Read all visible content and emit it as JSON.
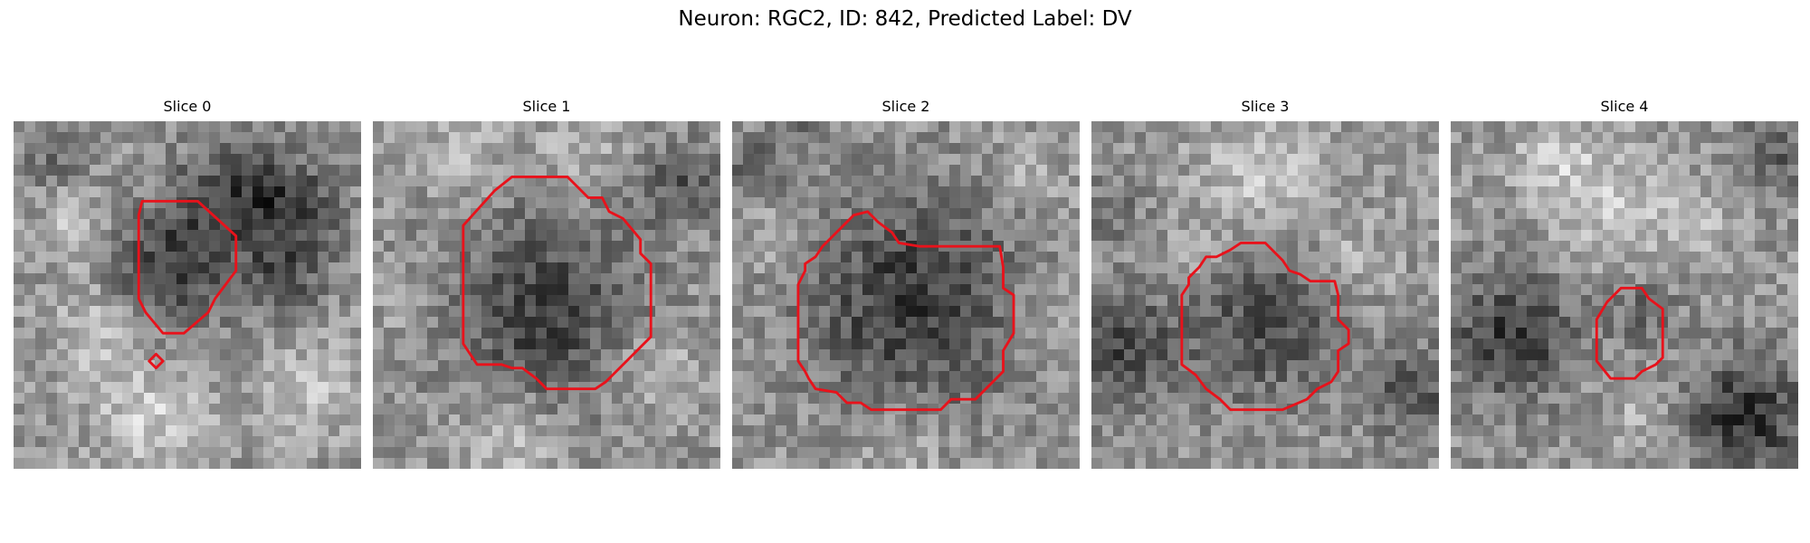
{
  "figure": {
    "title": "Neuron: RGC2, ID: 842, Predicted Label: DV",
    "contour_color": "#e8121b",
    "panels": [
      {
        "label": "Slice 0",
        "seed": 17,
        "blobs": [
          [
            0.45,
            0.42,
            0.18,
            -90
          ],
          [
            0.8,
            0.25,
            0.14,
            -80
          ],
          [
            0.78,
            0.45,
            0.12,
            -60
          ],
          [
            0.62,
            0.2,
            0.15,
            -70
          ],
          [
            0.1,
            0.1,
            0.1,
            -40
          ],
          [
            0.4,
            0.85,
            0.16,
            55
          ],
          [
            0.25,
            0.6,
            0.14,
            45
          ],
          [
            0.85,
            0.78,
            0.14,
            40
          ],
          [
            0.18,
            0.3,
            0.1,
            45
          ]
        ],
        "contours": [
          [
            [
              0.37,
              0.23
            ],
            [
              0.53,
              0.23
            ],
            [
              0.64,
              0.33
            ],
            [
              0.64,
              0.43
            ],
            [
              0.58,
              0.51
            ],
            [
              0.56,
              0.55
            ],
            [
              0.49,
              0.61
            ],
            [
              0.43,
              0.61
            ],
            [
              0.38,
              0.55
            ],
            [
              0.36,
              0.51
            ],
            [
              0.36,
              0.27
            ]
          ],
          [
            [
              0.41,
              0.67
            ],
            [
              0.43,
              0.69
            ],
            [
              0.41,
              0.71
            ],
            [
              0.39,
              0.69
            ]
          ]
        ]
      },
      {
        "label": "Slice 1",
        "seed": 29,
        "blobs": [
          [
            0.5,
            0.55,
            0.28,
            -85
          ],
          [
            0.88,
            0.18,
            0.12,
            -60
          ],
          [
            0.1,
            0.55,
            0.1,
            20
          ],
          [
            0.4,
            0.92,
            0.15,
            45
          ],
          [
            0.8,
            0.7,
            0.14,
            40
          ],
          [
            0.25,
            0.08,
            0.12,
            35
          ],
          [
            0.6,
            0.08,
            0.12,
            35
          ]
        ],
        "contours": [
          [
            [
              0.4,
              0.16
            ],
            [
              0.56,
              0.16
            ],
            [
              0.62,
              0.22
            ],
            [
              0.66,
              0.22
            ],
            [
              0.68,
              0.26
            ],
            [
              0.72,
              0.28
            ],
            [
              0.77,
              0.34
            ],
            [
              0.77,
              0.38
            ],
            [
              0.8,
              0.41
            ],
            [
              0.8,
              0.62
            ],
            [
              0.73,
              0.69
            ],
            [
              0.67,
              0.75
            ],
            [
              0.64,
              0.77
            ],
            [
              0.5,
              0.77
            ],
            [
              0.47,
              0.74
            ],
            [
              0.43,
              0.71
            ],
            [
              0.4,
              0.71
            ],
            [
              0.37,
              0.7
            ],
            [
              0.3,
              0.7
            ],
            [
              0.26,
              0.64
            ],
            [
              0.26,
              0.3
            ],
            [
              0.35,
              0.2
            ]
          ]
        ]
      },
      {
        "label": "Slice 2",
        "seed": 41,
        "blobs": [
          [
            0.52,
            0.52,
            0.3,
            -95
          ],
          [
            0.05,
            0.12,
            0.1,
            -40
          ],
          [
            0.2,
            0.05,
            0.1,
            -30
          ],
          [
            0.9,
            0.55,
            0.1,
            30
          ],
          [
            0.5,
            0.95,
            0.12,
            30
          ],
          [
            0.15,
            0.35,
            0.1,
            35
          ],
          [
            0.85,
            0.15,
            0.1,
            25
          ]
        ],
        "contours": [
          [
            [
              0.35,
              0.27
            ],
            [
              0.39,
              0.26
            ],
            [
              0.42,
              0.29
            ],
            [
              0.46,
              0.32
            ],
            [
              0.48,
              0.35
            ],
            [
              0.54,
              0.36
            ],
            [
              0.77,
              0.36
            ],
            [
              0.78,
              0.42
            ],
            [
              0.78,
              0.48
            ],
            [
              0.81,
              0.5
            ],
            [
              0.81,
              0.61
            ],
            [
              0.78,
              0.66
            ],
            [
              0.78,
              0.72
            ],
            [
              0.7,
              0.8
            ],
            [
              0.63,
              0.8
            ],
            [
              0.6,
              0.83
            ],
            [
              0.4,
              0.83
            ],
            [
              0.37,
              0.81
            ],
            [
              0.33,
              0.81
            ],
            [
              0.3,
              0.78
            ],
            [
              0.24,
              0.77
            ],
            [
              0.22,
              0.74
            ],
            [
              0.21,
              0.72
            ],
            [
              0.19,
              0.69
            ],
            [
              0.19,
              0.47
            ],
            [
              0.21,
              0.43
            ],
            [
              0.21,
              0.41
            ],
            [
              0.24,
              0.39
            ],
            [
              0.26,
              0.36
            ],
            [
              0.3,
              0.32
            ]
          ]
        ]
      },
      {
        "label": "Slice 3",
        "seed": 53,
        "blobs": [
          [
            0.5,
            0.58,
            0.22,
            -75
          ],
          [
            0.08,
            0.65,
            0.16,
            -80
          ],
          [
            0.92,
            0.78,
            0.14,
            -65
          ],
          [
            0.05,
            0.25,
            0.1,
            -40
          ],
          [
            0.5,
            0.15,
            0.18,
            50
          ],
          [
            0.3,
            0.4,
            0.1,
            30
          ],
          [
            0.75,
            0.4,
            0.12,
            30
          ]
        ],
        "contours": [
          [
            [
              0.43,
              0.35
            ],
            [
              0.5,
              0.35
            ],
            [
              0.55,
              0.4
            ],
            [
              0.57,
              0.43
            ],
            [
              0.6,
              0.44
            ],
            [
              0.63,
              0.46
            ],
            [
              0.7,
              0.46
            ],
            [
              0.71,
              0.5
            ],
            [
              0.71,
              0.57
            ],
            [
              0.74,
              0.6
            ],
            [
              0.74,
              0.64
            ],
            [
              0.71,
              0.66
            ],
            [
              0.71,
              0.72
            ],
            [
              0.69,
              0.75
            ],
            [
              0.65,
              0.77
            ],
            [
              0.62,
              0.8
            ],
            [
              0.55,
              0.83
            ],
            [
              0.4,
              0.83
            ],
            [
              0.37,
              0.8
            ],
            [
              0.33,
              0.77
            ],
            [
              0.3,
              0.73
            ],
            [
              0.26,
              0.7
            ],
            [
              0.26,
              0.5
            ],
            [
              0.28,
              0.47
            ],
            [
              0.28,
              0.45
            ],
            [
              0.31,
              0.42
            ],
            [
              0.33,
              0.39
            ],
            [
              0.36,
              0.39
            ],
            [
              0.4,
              0.37
            ]
          ]
        ]
      },
      {
        "label": "Slice 4",
        "seed": 67,
        "blobs": [
          [
            0.18,
            0.62,
            0.18,
            -95
          ],
          [
            0.85,
            0.85,
            0.18,
            -100
          ],
          [
            0.93,
            0.1,
            0.1,
            -60
          ],
          [
            0.55,
            0.55,
            0.1,
            -45
          ],
          [
            0.45,
            0.25,
            0.18,
            45
          ],
          [
            0.3,
            0.1,
            0.12,
            40
          ],
          [
            0.7,
            0.3,
            0.1,
            35
          ],
          [
            0.55,
            0.85,
            0.12,
            30
          ]
        ],
        "contours": [
          [
            [
              0.49,
              0.48
            ],
            [
              0.55,
              0.48
            ],
            [
              0.57,
              0.51
            ],
            [
              0.61,
              0.54
            ],
            [
              0.61,
              0.68
            ],
            [
              0.59,
              0.7
            ],
            [
              0.57,
              0.71
            ],
            [
              0.55,
              0.72
            ],
            [
              0.53,
              0.74
            ],
            [
              0.46,
              0.74
            ],
            [
              0.42,
              0.69
            ],
            [
              0.42,
              0.57
            ],
            [
              0.45,
              0.52
            ]
          ]
        ]
      }
    ]
  }
}
